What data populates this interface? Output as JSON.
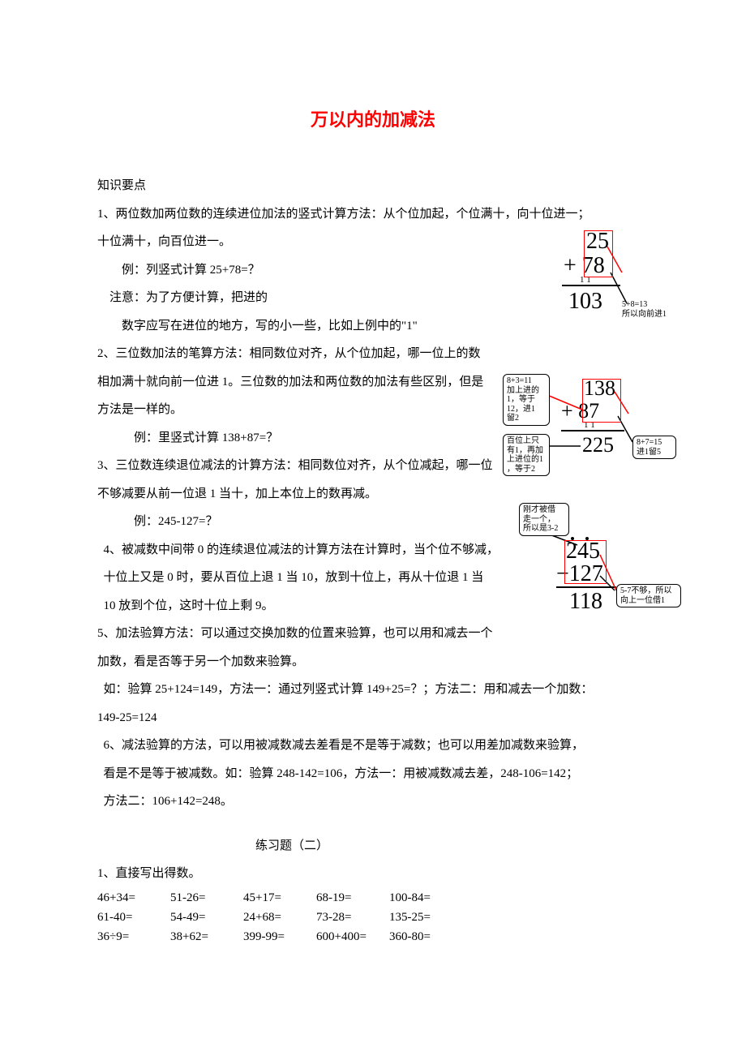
{
  "title": "万以内的加减法",
  "heading_knowledge": "知识要点",
  "p1a": "1、两位数加两位数的连续进位加法的竖式计算方法：从个位加起，个位满十，向十位进一；",
  "p1b": "十位满十，向百位进一。",
  "ex1": "例：列竖式计算 25+78=？",
  "note1a": "注意：为了方便计算，把进的",
  "note1b": "数字应写在进位的地方，写的小一些，比如上例中的\"1\"",
  "p2a": "2、三位数加法的笔算方法：相同数位对齐，从个位加起，哪一位上的数",
  "p2b": "相加满十就向前一位进 1。三位数的加法和两位数的加法有些区别，但是",
  "p2c": "方法是一样的。",
  "ex2": "例：里竖式计算 138+87=？",
  "p3a": "3、三位数连续退位减法的计算方法：相同数位对齐，从个位减起，哪一位",
  "p3b": "不够减要从前一位退 1 当十，加上本位上的数再减。",
  "ex3": "例：245-127=？",
  "p4a": "4、被减数中间带 0 的连续退位减法的计算方法在计算时，当个位不够减，",
  "p4b": "十位上又是 0 时，要从百位上退 1 当 10，放到十位上，再从十位退 1 当",
  "p4c": "10 放到个位，这时十位上剩 9。",
  "p5a": "5、加法验算方法：可以通过交换加数的位置来验算，也可以用和减去一个",
  "p5b": "加数，看是否等于另一个加数来验算。",
  "p5c": "如：验算 25+124=149，方法一：通过列竖式计算 149+25=？；方法二：用和减去一个加数：",
  "p5d": "149-25=124",
  "p6a": "6、减法验算的方法，可以用被减数减去差看是不是等于减数；也可以用差加减数来验算，",
  "p6b": "看是不是等于被减数。如：验算 248-142=106，方法一：用被减数减去差，248-106=142；",
  "p6c": "方法二：106+142=248。",
  "exercise_title": "练习题（二）",
  "q1": "1、直接写出得数。",
  "row1": [
    "46+34=",
    "51-26=",
    "45+17=",
    "68-19=",
    "100-84="
  ],
  "row2": [
    "61-40=",
    "54-49=",
    "24+68=",
    "73-28=",
    "135-25="
  ],
  "row3": [
    "36÷9=",
    "38+62=",
    "399-99=",
    "600+400=",
    "360-80="
  ],
  "fig1": {
    "l1": "25",
    "l2": "+  78",
    "carry": "1  1",
    "res": "103",
    "note_a": "5+8=13",
    "note_b": "所以向前进1"
  },
  "fig2": {
    "l1": "138",
    "l2": "+    87",
    "carry": "1  1",
    "res": "225",
    "box_left": "8+3=11\n加上进的\n1，等于\n12，进1\n留2",
    "box_bl": "百位上只\n有1，再加\n上进位的1\n，等于2",
    "box_r": "8+7=15\n进1留5"
  },
  "fig3": {
    "l1": "245",
    "l2": "−127",
    "res": "118",
    "box_top": "刚才被借\n走一个，\n所以是3-2",
    "box_r": "5-7不够，所以\n向上一位借1"
  }
}
